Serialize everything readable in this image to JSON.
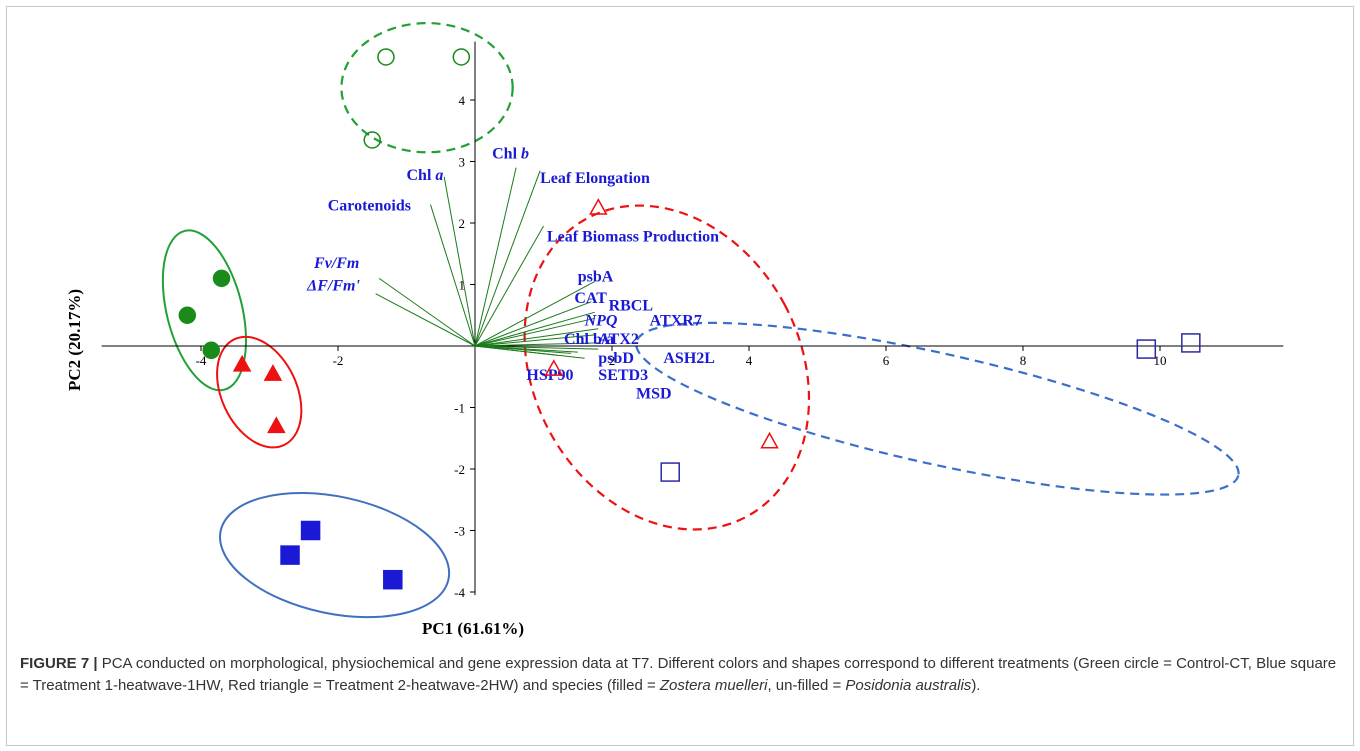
{
  "chart_data": {
    "type": "scatter",
    "subtype": "pca-biplot",
    "xlabel": "PC1 (61.61%)",
    "ylabel": "PC2 (20.17%)",
    "xlim": [
      -4.9,
      12
    ],
    "ylim": [
      -4.2,
      4.9
    ],
    "x_ticks": [
      -4,
      -2,
      2,
      4,
      6,
      8,
      10
    ],
    "y_ticks": [
      4,
      3,
      2,
      1,
      -1,
      -2,
      -3,
      -4
    ],
    "x_tick_labels": [
      "-4",
      "-2",
      "2",
      "4",
      "6",
      "8",
      "10"
    ],
    "y_tick_labels": [
      "4",
      "3",
      "2",
      "1",
      "-1",
      "-2",
      "-3",
      "-4"
    ],
    "grid": false,
    "series": [
      {
        "name": "Control-CT, Zostera muelleri",
        "color": "#1a8a1a",
        "marker": "circle",
        "filled": true,
        "points": [
          [
            -3.7,
            1.1
          ],
          [
            -4.2,
            0.5
          ],
          [
            -3.85,
            -0.07
          ]
        ]
      },
      {
        "name": "Control-CT, Posidonia australis",
        "color": "#1a8a1a",
        "marker": "circle",
        "filled": false,
        "points": [
          [
            -1.3,
            4.7
          ],
          [
            -0.2,
            4.7
          ],
          [
            -1.5,
            3.35
          ]
        ]
      },
      {
        "name": "Treatment 1-heatwave-1HW, Zostera muelleri",
        "color": "#1a1ad6",
        "marker": "square",
        "filled": true,
        "points": [
          [
            -2.4,
            -3.0
          ],
          [
            -2.7,
            -3.4
          ],
          [
            -1.2,
            -3.8
          ]
        ]
      },
      {
        "name": "Treatment 1-heatwave-1HW, Posidonia australis",
        "color": "#2a2aa8",
        "marker": "square",
        "filled": false,
        "points": [
          [
            2.85,
            -2.05
          ],
          [
            9.8,
            -0.05
          ],
          [
            10.45,
            0.05
          ]
        ]
      },
      {
        "name": "Treatment 2-heatwave-2HW, Zostera muelleri",
        "color": "#e11",
        "marker": "triangle",
        "filled": true,
        "points": [
          [
            -3.4,
            -0.3
          ],
          [
            -2.95,
            -0.45
          ],
          [
            -2.9,
            -1.3
          ]
        ]
      },
      {
        "name": "Treatment 2-heatwave-2HW, Posidonia australis",
        "color": "#e11",
        "marker": "triangle",
        "filled": false,
        "points": [
          [
            1.8,
            2.25
          ],
          [
            1.15,
            -0.37
          ],
          [
            4.3,
            -1.55
          ]
        ]
      }
    ],
    "ellipses": [
      {
        "group": "green-filled",
        "color": "#22a035",
        "dashed": false,
        "cx": -3.95,
        "cy": 0.58,
        "rx": 0.55,
        "ry": 1.33,
        "angle": 14
      },
      {
        "group": "green-open",
        "color": "#22a035",
        "dashed": true,
        "cx": -0.7,
        "cy": 4.2,
        "rx": 1.25,
        "ry": 1.05,
        "angle": 0
      },
      {
        "group": "red-filled",
        "color": "#e11",
        "dashed": false,
        "cx": -3.15,
        "cy": -0.75,
        "rx": 0.55,
        "ry": 0.95,
        "angle": 25
      },
      {
        "group": "red-open",
        "color": "#e11",
        "dashed": true,
        "cx": 2.8,
        "cy": -0.35,
        "rx": 1.95,
        "ry": 2.75,
        "angle": 28
      },
      {
        "group": "blue-filled",
        "color": "#4070c0",
        "dashed": false,
        "cx": -2.05,
        "cy": -3.4,
        "rx": 1.7,
        "ry": 0.95,
        "angle": -12
      },
      {
        "group": "blue-open",
        "color": "#3b6fc9",
        "dashed": true,
        "cx": 6.75,
        "cy": -1.02,
        "rx": 4.5,
        "ry": 0.9,
        "angle": -12.5
      }
    ],
    "loadings": [
      {
        "label": "Chl b",
        "x": 0.6,
        "y": 2.9
      },
      {
        "label": "Chl a",
        "x": -0.45,
        "y": 2.75
      },
      {
        "label": "Leaf Elongation",
        "x": 0.95,
        "y": 2.85
      },
      {
        "label": "Carotenoids",
        "x": -0.65,
        "y": 2.3
      },
      {
        "label": "Leaf Biomass Production",
        "x": 1.0,
        "y": 1.95
      },
      {
        "label": "Fv/Fm",
        "x": -1.4,
        "y": 1.1
      },
      {
        "label": "ΔF/Fm'",
        "x": -1.45,
        "y": 0.85
      },
      {
        "label": "psbA",
        "x": 1.75,
        "y": 1.05
      },
      {
        "label": "CAT",
        "x": 1.7,
        "y": 0.72
      },
      {
        "label": "RBCL",
        "x": 1.75,
        "y": 0.55
      },
      {
        "label": "NPQ",
        "x": 1.75,
        "y": 0.45
      },
      {
        "label": "ATXR7",
        "x": 1.8,
        "y": 0.28
      },
      {
        "label": "Chl b/a",
        "x": 1.75,
        "y": 0.18
      },
      {
        "label": "ATX2",
        "x": 1.8,
        "y": 0.05
      },
      {
        "label": "psbD",
        "x": 1.8,
        "y": -0.05
      },
      {
        "label": "ASH2L",
        "x": 1.5,
        "y": -0.1
      },
      {
        "label": "HSP90",
        "x": 1.2,
        "y": -0.15
      },
      {
        "label": "SETD3",
        "x": 1.4,
        "y": -0.12
      },
      {
        "label": "MSD",
        "x": 1.6,
        "y": -0.2
      }
    ],
    "loading_labels": [
      {
        "id": "chlb",
        "text": "Chl",
        "italic": "b",
        "x": 0.25,
        "y": 3.05
      },
      {
        "id": "chla",
        "text": "Chl",
        "italic": "a",
        "x": -1.0,
        "y": 2.7
      },
      {
        "id": "leafel",
        "text": "Leaf Elongation",
        "x": 0.95,
        "y": 2.65
      },
      {
        "id": "carot",
        "text": "Carotenoids",
        "x": -2.15,
        "y": 2.2
      },
      {
        "id": "leafbio",
        "text": "Leaf Biomass Production",
        "x": 1.05,
        "y": 1.7
      },
      {
        "id": "fvfm",
        "text": "Fv/Fm",
        "italic_all": true,
        "x": -2.35,
        "y": 1.27
      },
      {
        "id": "dffm",
        "text": "ΔF/Fm'",
        "italic_all": true,
        "x": -2.45,
        "y": 0.9
      },
      {
        "id": "psba",
        "text": "psbA",
        "x": 1.5,
        "y": 1.05
      },
      {
        "id": "cat",
        "text": "CAT",
        "x": 1.45,
        "y": 0.7
      },
      {
        "id": "rbcl",
        "text": "RBCL",
        "x": 1.95,
        "y": 0.58
      },
      {
        "id": "npq",
        "text": "NPQ",
        "italic_all": true,
        "x": 1.6,
        "y": 0.33
      },
      {
        "id": "atxr7",
        "text": "ATXR7",
        "x": 2.55,
        "y": 0.33
      },
      {
        "id": "chlba",
        "text": "Chl b/a",
        "x": 1.3,
        "y": 0.03
      },
      {
        "id": "atx2",
        "text": "ATX2",
        "x": 1.8,
        "y": 0.03
      },
      {
        "id": "psbd",
        "text": "psbD",
        "x": 1.8,
        "y": -0.28
      },
      {
        "id": "ash2l",
        "text": "ASH2L",
        "x": 2.75,
        "y": -0.28
      },
      {
        "id": "hsp90",
        "text": "HSP90",
        "x": 0.75,
        "y": -0.55
      },
      {
        "id": "setd3",
        "text": "SETD3",
        "x": 1.8,
        "y": -0.55
      },
      {
        "id": "msd",
        "text": "MSD",
        "x": 2.35,
        "y": -0.85
      }
    ]
  },
  "caption": {
    "figure_label": "FIGURE 7 |",
    "text_1": " PCA conducted on morphological, physiochemical and gene expression data at T7. Different colors and shapes correspond to different treatments (Green circle = Control-CT, Blue square = Treatment 1-heatwave-1HW, Red triangle = Treatment 2-heatwave-2HW) and species (filled = ",
    "species_1": "Zostera muelleri",
    "text_2": ", un-filled = ",
    "species_2": "Posidonia australis",
    "text_3": ")."
  }
}
